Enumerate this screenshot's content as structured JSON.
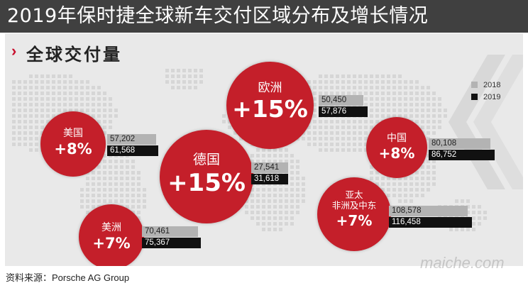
{
  "header": {
    "title": "2019年保时捷全球新车交付区域分布及增长情况"
  },
  "section": {
    "chevron": "›",
    "title": "全球交付量"
  },
  "legend": [
    {
      "label": "2018",
      "color": "#b3b3b3"
    },
    {
      "label": "2019",
      "color": "#111111"
    }
  ],
  "chart_data": {
    "type": "bar",
    "series": [
      {
        "name": "2018",
        "color": "#b3b3b3"
      },
      {
        "name": "2019",
        "color": "#111111"
      }
    ],
    "regions": [
      {
        "id": "europe",
        "name": "欧洲",
        "growth": "+15%",
        "v2018": 50450,
        "v2019": 57876,
        "l2018": "50,450",
        "l2019": "57,876"
      },
      {
        "id": "usa",
        "name": "美国",
        "growth": "+8%",
        "v2018": 57202,
        "v2019": 61568,
        "l2018": "57,202",
        "l2019": "61,568"
      },
      {
        "id": "germany",
        "name": "德国",
        "growth": "+15%",
        "v2018": 27541,
        "v2019": 31618,
        "l2018": "27,541",
        "l2019": "31,618"
      },
      {
        "id": "china",
        "name": "中国",
        "growth": "+8%",
        "v2018": 80108,
        "v2019": 86752,
        "l2018": "80,108",
        "l2019": "86,752"
      },
      {
        "id": "americas",
        "name": "美洲",
        "growth": "+7%",
        "v2018": 70461,
        "v2019": 75367,
        "l2018": "70,461",
        "l2019": "75,367"
      },
      {
        "id": "apac",
        "name": "亚太\n非洲及中东",
        "growth": "+7%",
        "v2018": 108578,
        "v2019": 116458,
        "l2018": "108,578",
        "l2019": "116,458"
      }
    ]
  },
  "footer": {
    "source": "资料来源：Porsche AG Group"
  },
  "watermark": {
    "text": "maiche.com"
  }
}
